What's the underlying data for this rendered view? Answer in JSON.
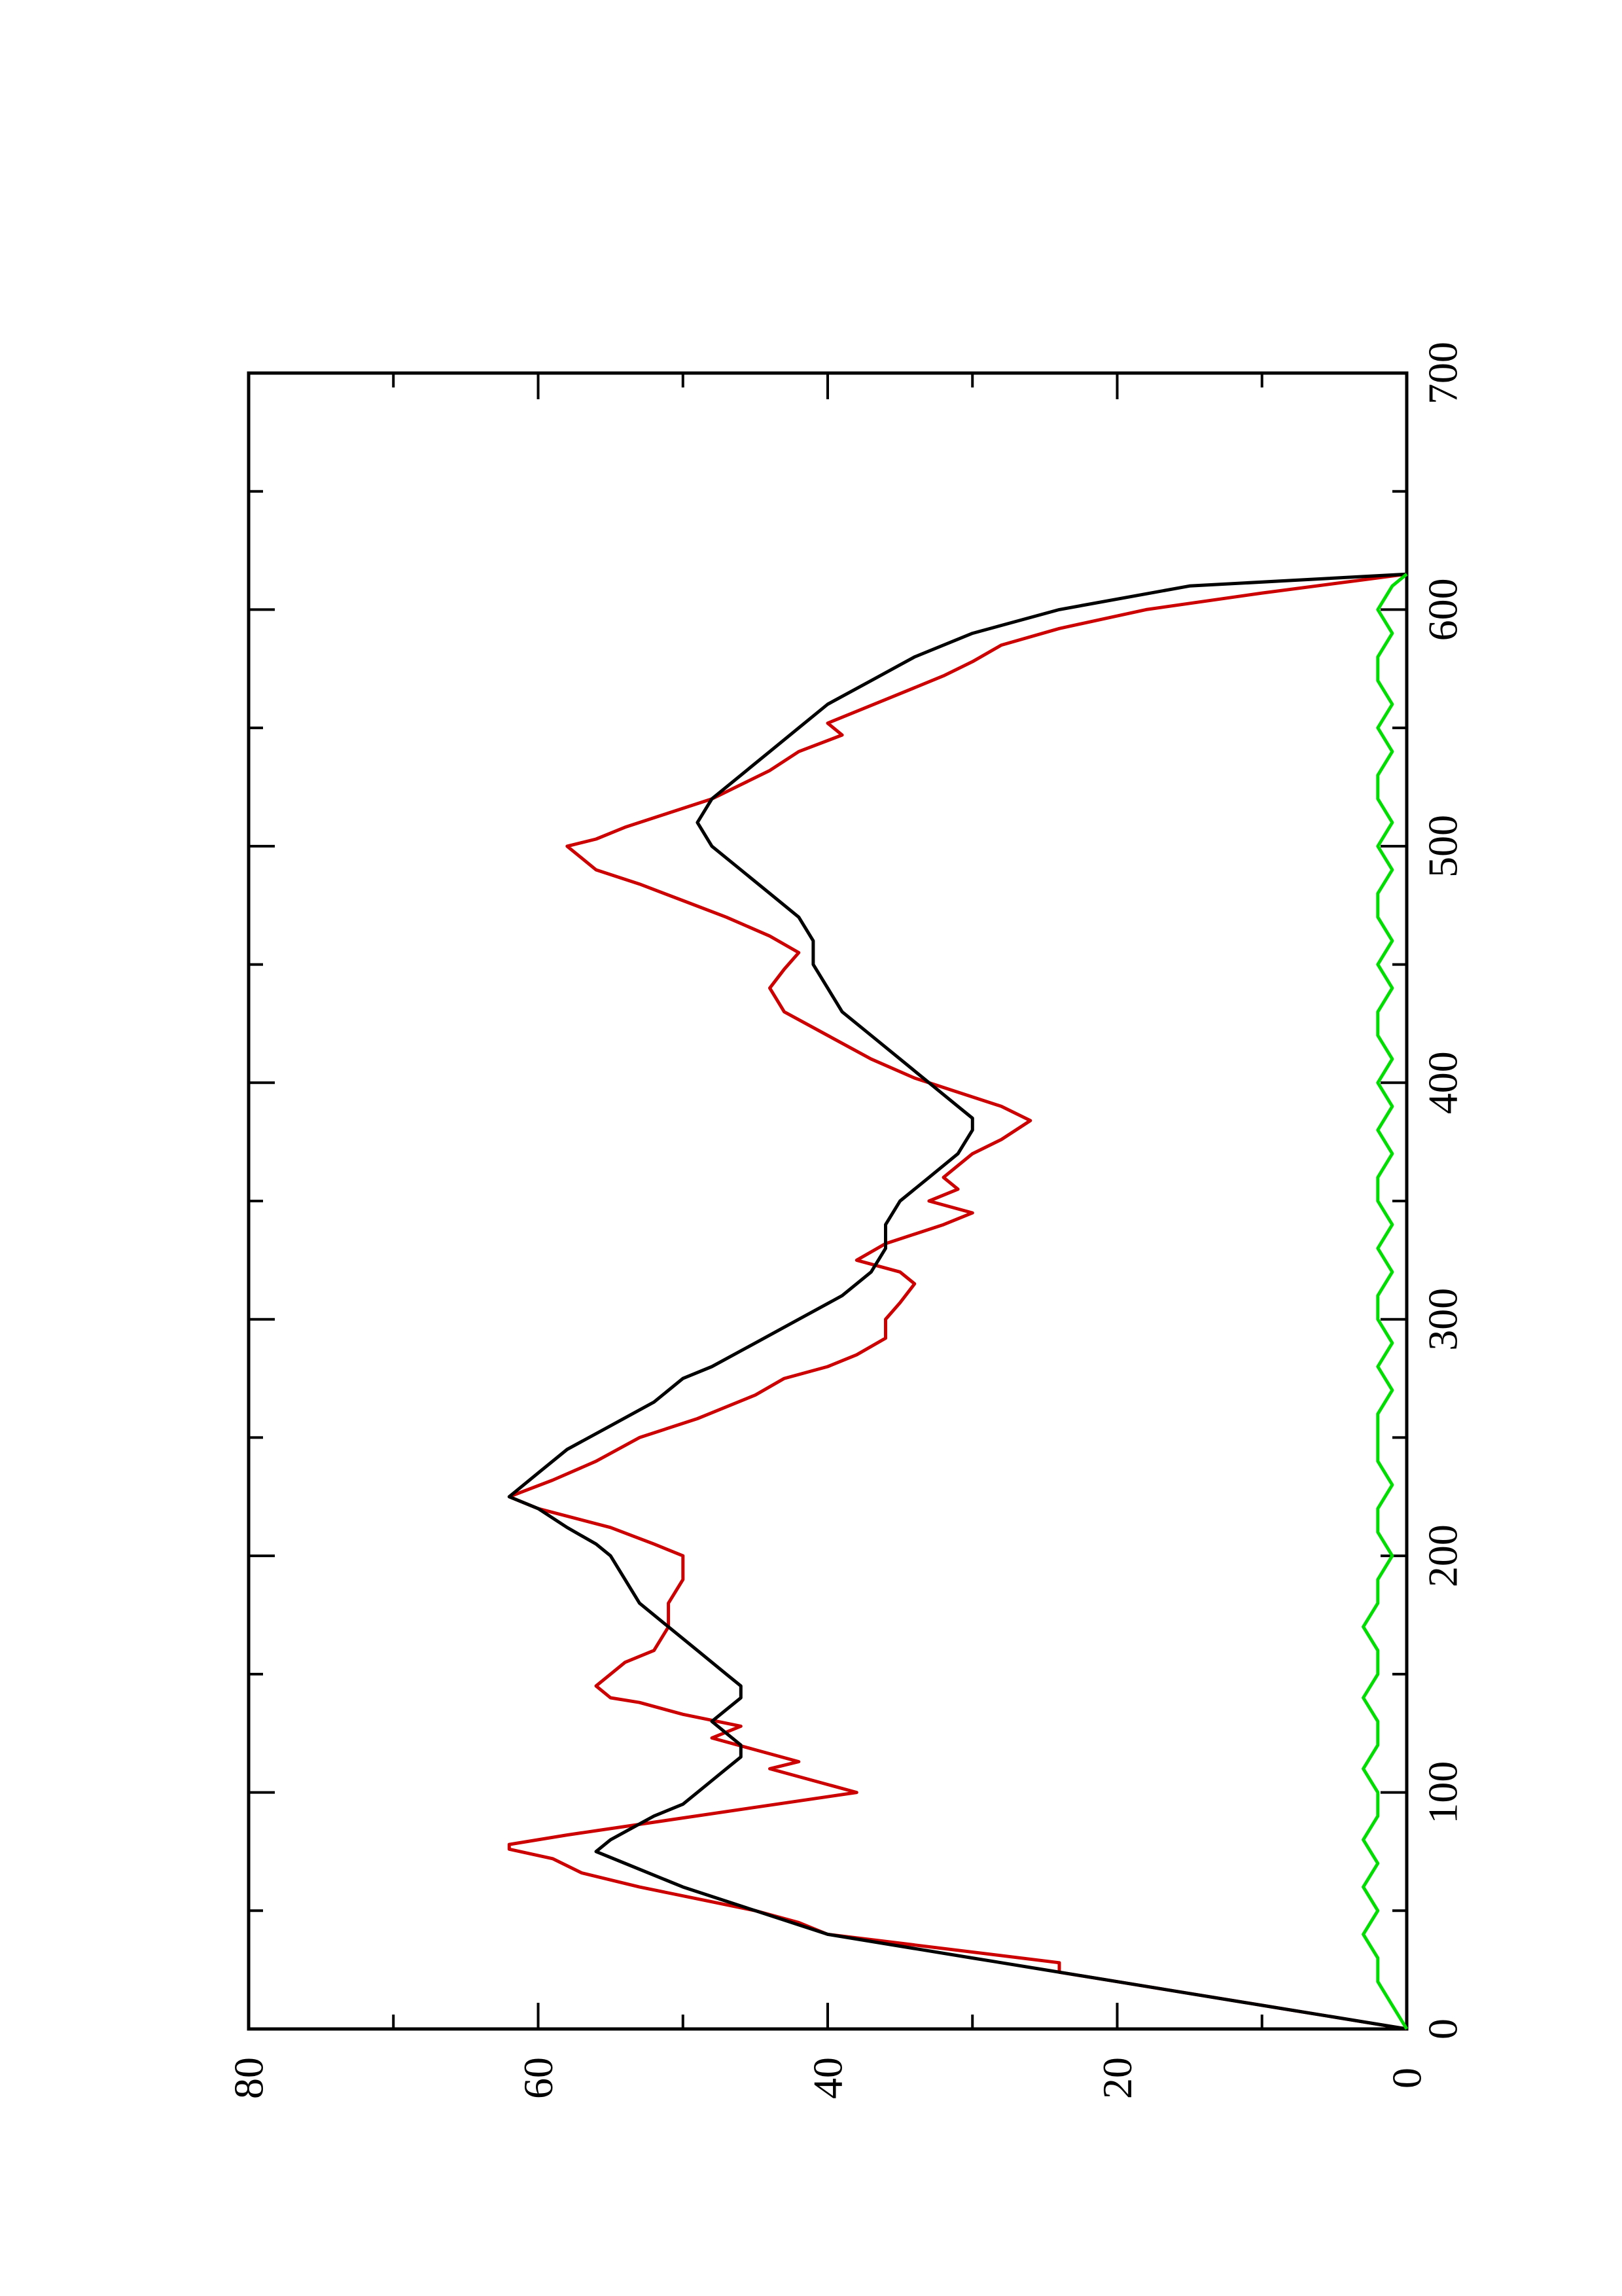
{
  "chart_data": {
    "type": "line",
    "orientation": "rotated-90-ccw",
    "title": "",
    "xlabel": "",
    "ylabel": "",
    "xlim": [
      0,
      700
    ],
    "ylim": [
      0,
      80
    ],
    "x_ticks": [
      "0",
      "100",
      "200",
      "300",
      "400",
      "500",
      "600",
      "700"
    ],
    "y_ticks": [
      "0",
      "20",
      "40",
      "60",
      "80"
    ],
    "grid": false,
    "legend": "none",
    "series": [
      {
        "color": "#cc0000",
        "x": [
          0,
          3,
          6,
          9,
          12,
          16,
          20,
          24,
          28,
          40,
          45,
          50,
          55,
          60,
          66,
          72,
          76,
          78,
          82,
          100,
          105,
          110,
          113,
          118,
          123,
          128,
          133,
          138,
          140,
          145,
          150,
          155,
          160,
          170,
          180,
          190,
          200,
          205,
          212,
          220,
          225,
          232,
          240,
          250,
          258,
          268,
          275,
          280,
          285,
          292,
          300,
          307,
          315,
          320,
          325,
          332,
          340,
          345,
          350,
          355,
          360,
          365,
          370,
          376,
          384,
          390,
          396,
          402,
          410,
          420,
          430,
          440,
          448,
          455,
          462,
          470,
          477,
          484,
          490,
          495,
          500,
          503,
          508,
          514,
          520,
          526,
          532,
          540,
          547,
          552,
          557,
          562,
          567,
          572,
          578,
          585,
          592,
          600,
          607,
          615
        ],
        "y": [
          0,
          3,
          6,
          9,
          12,
          16,
          20,
          24,
          24,
          40,
          42,
          45,
          49,
          53,
          57,
          59,
          62,
          62,
          58,
          38,
          41,
          44,
          42,
          45,
          48,
          46,
          50,
          53,
          55,
          56,
          55,
          54,
          52,
          51,
          51,
          50,
          50,
          52,
          55,
          60,
          62,
          59,
          56,
          53,
          49,
          45,
          43,
          40,
          38,
          36,
          36,
          35,
          34,
          35,
          38,
          36,
          32,
          30,
          33,
          31,
          32,
          31,
          30,
          28,
          26,
          28,
          31,
          34,
          37,
          40,
          43,
          44,
          43,
          42,
          44,
          47,
          50,
          53,
          56,
          57,
          58,
          56,
          54,
          51,
          48,
          46,
          44,
          42,
          39,
          40,
          38,
          36,
          34,
          32,
          30,
          28,
          24,
          18,
          10,
          0
        ]
      },
      {
        "color": "#000000",
        "x": [
          0,
          5,
          10,
          15,
          20,
          25,
          30,
          35,
          40,
          50,
          60,
          70,
          75,
          80,
          90,
          95,
          100,
          105,
          110,
          115,
          120,
          125,
          130,
          135,
          140,
          145,
          150,
          155,
          160,
          170,
          180,
          190,
          200,
          205,
          212,
          220,
          225,
          235,
          245,
          255,
          265,
          275,
          280,
          290,
          300,
          310,
          320,
          330,
          340,
          350,
          360,
          370,
          380,
          385,
          390,
          400,
          410,
          420,
          430,
          440,
          450,
          460,
          470,
          480,
          490,
          500,
          510,
          520,
          530,
          540,
          550,
          560,
          570,
          580,
          590,
          600,
          610,
          615
        ],
        "y": [
          0,
          5,
          10,
          15,
          20,
          25,
          30,
          35,
          40,
          45,
          50,
          54,
          56,
          55,
          52,
          50,
          49,
          48,
          47,
          46,
          46,
          47,
          48,
          47,
          46,
          46,
          47,
          48,
          49,
          51,
          53,
          54,
          55,
          56,
          58,
          60,
          62,
          60,
          58,
          55,
          52,
          50,
          48,
          45,
          42,
          39,
          37,
          36,
          36,
          35,
          33,
          31,
          30,
          30,
          31,
          33,
          35,
          37,
          39,
          40,
          41,
          41,
          42,
          44,
          46,
          48,
          49,
          48,
          46,
          44,
          42,
          40,
          37,
          34,
          30,
          24,
          15,
          0
        ]
      },
      {
        "color": "#00dd00",
        "x": [
          0,
          10,
          20,
          30,
          40,
          50,
          60,
          70,
          80,
          90,
          100,
          110,
          120,
          130,
          140,
          150,
          160,
          170,
          180,
          190,
          200,
          210,
          220,
          230,
          240,
          250,
          260,
          270,
          280,
          290,
          300,
          310,
          320,
          330,
          340,
          350,
          360,
          370,
          380,
          390,
          400,
          410,
          420,
          430,
          440,
          450,
          460,
          470,
          480,
          490,
          500,
          510,
          520,
          530,
          540,
          550,
          560,
          570,
          580,
          590,
          600,
          610,
          615
        ],
        "y": [
          0,
          1,
          2,
          2,
          3,
          2,
          3,
          2,
          3,
          2,
          2,
          3,
          2,
          2,
          3,
          2,
          2,
          3,
          2,
          2,
          1,
          2,
          2,
          1,
          2,
          2,
          2,
          1,
          2,
          1,
          2,
          2,
          1,
          2,
          1,
          2,
          2,
          1,
          2,
          1,
          2,
          1,
          2,
          2,
          1,
          2,
          1,
          2,
          2,
          1,
          2,
          1,
          2,
          2,
          1,
          2,
          1,
          2,
          2,
          1,
          2,
          1,
          0
        ]
      }
    ]
  }
}
